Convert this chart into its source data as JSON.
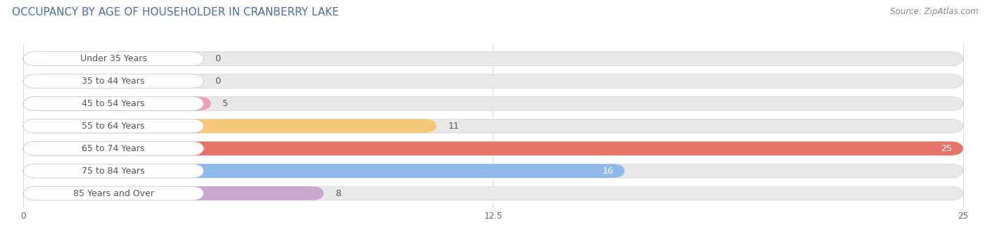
{
  "title": "OCCUPANCY BY AGE OF HOUSEHOLDER IN CRANBERRY LAKE",
  "source": "Source: ZipAtlas.com",
  "categories": [
    "Under 35 Years",
    "35 to 44 Years",
    "45 to 54 Years",
    "55 to 64 Years",
    "65 to 74 Years",
    "75 to 84 Years",
    "85 Years and Over"
  ],
  "values": [
    0,
    0,
    5,
    11,
    25,
    16,
    8
  ],
  "bar_colors": [
    "#6ecfcb",
    "#a8a8d8",
    "#f2a0b8",
    "#f8c87a",
    "#e8756a",
    "#90b8e8",
    "#c8a8cc"
  ],
  "xlim_max": 25,
  "xticks": [
    0,
    12.5,
    25
  ],
  "bar_height": 0.62,
  "background_color": "#ffffff",
  "bar_bg_color": "#e8e8e8",
  "title_fontsize": 11,
  "label_fontsize": 9,
  "value_fontsize": 9,
  "source_fontsize": 8.5,
  "title_color": "#4a6fa5",
  "label_color": "#555555",
  "value_color_inside": "#ffffff",
  "value_color_outside": "#555555"
}
